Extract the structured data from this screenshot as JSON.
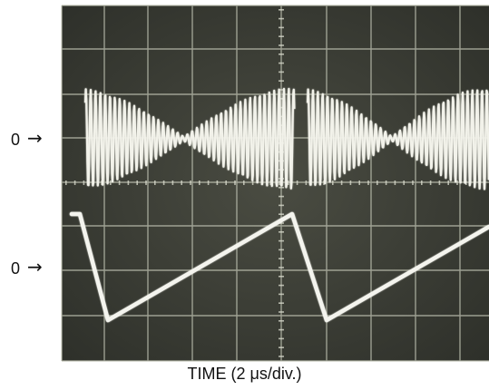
{
  "figure": {
    "caption": "TIME (2 μs/div.)",
    "upper_trace_ref": {
      "label": "0",
      "arrow": "→"
    },
    "lower_trace_ref": {
      "label": "0",
      "arrow": "→"
    }
  },
  "colors": {
    "screen_bg": "#3c3e34",
    "grid": "#bfc2b2",
    "trace": "#f2f2ea",
    "text": "#111111"
  },
  "icons": [
    "right-arrow-icon"
  ]
}
